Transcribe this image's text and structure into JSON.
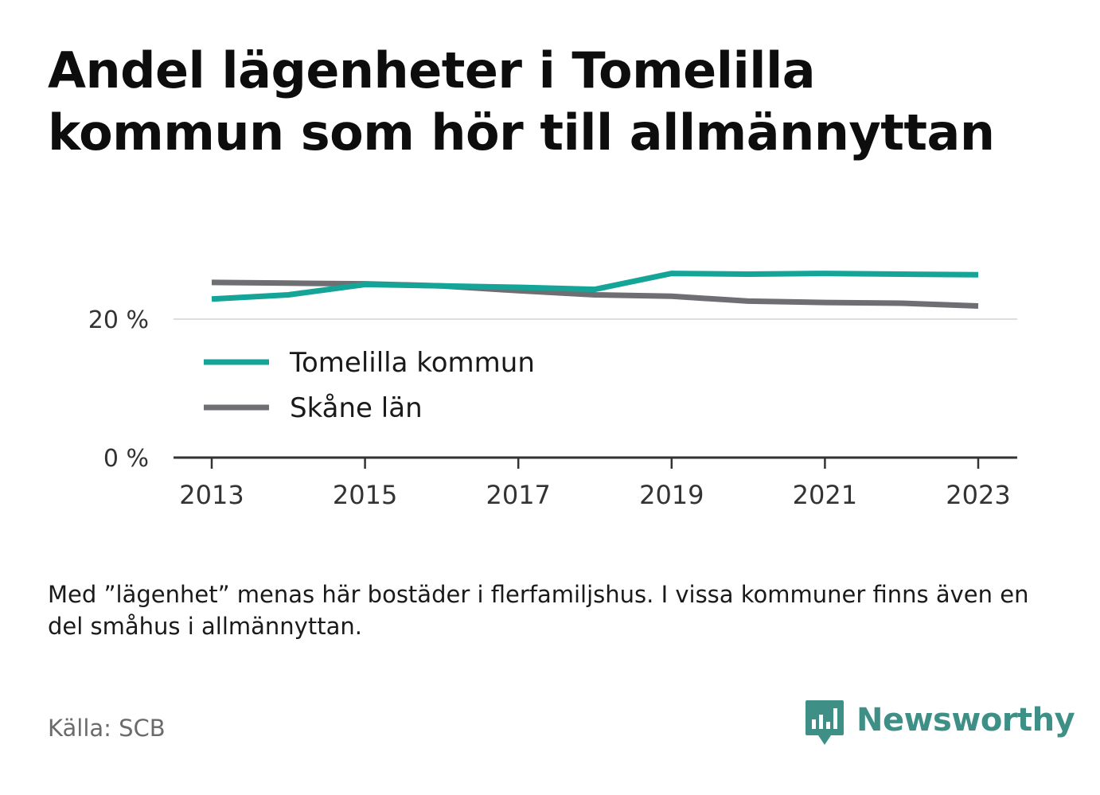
{
  "header": {
    "title": "Andel lägenheter i Tomelilla kommun som hör till allmännyttan"
  },
  "note": "Med ”lägenhet” menas här bostäder i flerfamiljshus. I vissa kommuner finns även en del småhus i allmännyttan.",
  "footer": {
    "source": "Källa: SCB",
    "brand": "Newsworthy",
    "brand_icon": "chart-speech-bubble-icon"
  },
  "colors": {
    "tomelilla": "#14a498",
    "skane": "#6e6e73",
    "brand": "#3e8f86",
    "grid": "#dddddd",
    "axis": "#333333"
  },
  "chart_data": {
    "type": "line",
    "title": "Andel lägenheter i Tomelilla kommun som hör till allmännyttan",
    "xlabel": "",
    "ylabel": "",
    "x": [
      2013,
      2014,
      2015,
      2016,
      2017,
      2018,
      2019,
      2020,
      2021,
      2022,
      2023
    ],
    "x_ticks": [
      "2013",
      "2015",
      "2017",
      "2019",
      "2021",
      "2023"
    ],
    "y_ticks": [
      "0 %",
      "20 %"
    ],
    "y_tick_values": [
      0,
      20
    ],
    "ylim": [
      0,
      30
    ],
    "grid": true,
    "legend_position": "inside-left",
    "series": [
      {
        "name": "Tomelilla kommun",
        "color": "#14a498",
        "values": [
          22.9,
          23.5,
          25.0,
          24.8,
          24.6,
          24.3,
          26.6,
          26.5,
          26.6,
          26.5,
          26.4
        ]
      },
      {
        "name": "Skåne län",
        "color": "#6e6e73",
        "values": [
          25.3,
          25.2,
          25.1,
          24.8,
          24.1,
          23.5,
          23.3,
          22.6,
          22.4,
          22.3,
          21.9
        ]
      }
    ]
  }
}
